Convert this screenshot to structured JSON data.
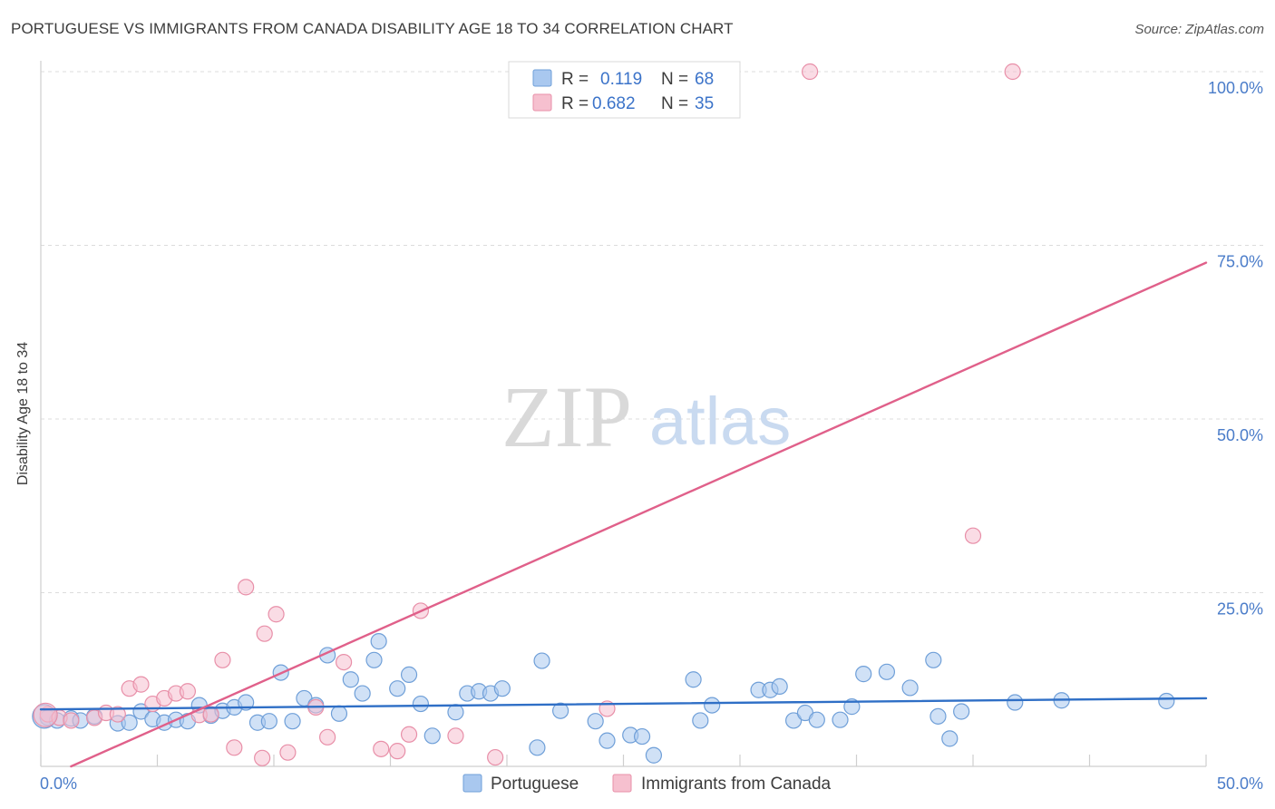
{
  "title": "PORTUGUESE VS IMMIGRANTS FROM CANADA DISABILITY AGE 18 TO 34 CORRELATION CHART",
  "source": "Source: ZipAtlas.com",
  "watermark": {
    "zip": "ZIP",
    "atlas": "atlas"
  },
  "legend_top": {
    "rows": [
      {
        "r_label": "R =",
        "r_value": "0.119",
        "n_label": "N =",
        "n_value": "68"
      },
      {
        "r_label": "R =",
        "r_value": "0.682",
        "n_label": "N =",
        "n_value": "35"
      }
    ]
  },
  "chart_data": {
    "type": "scatter",
    "title": "PORTUGUESE VS IMMIGRANTS FROM CANADA DISABILITY AGE 18 TO 34 CORRELATION CHART",
    "xlabel": "",
    "ylabel": "Disability Age 18 to 34",
    "xlim": [
      0,
      50
    ],
    "ylim": [
      0,
      102
    ],
    "x_tick_labels": [
      "0.0%",
      "50.0%"
    ],
    "y_ticks": [
      25,
      50,
      75,
      100
    ],
    "y_tick_labels": [
      "25.0%",
      "50.0%",
      "75.0%",
      "100.0%"
    ],
    "grid": true,
    "legend_position": "bottom-center",
    "series": [
      {
        "name": "Portuguese",
        "color": "#a9c8ef",
        "edge": "#6f9fd8",
        "line_color": "#2f6fc6",
        "trend": [
          [
            0,
            8.2
          ],
          [
            50,
            9.8
          ]
        ],
        "points": [
          [
            0.3,
            7.0
          ],
          [
            0.7,
            6.6
          ],
          [
            1.3,
            6.9
          ],
          [
            1.7,
            6.6
          ],
          [
            2.3,
            7.2
          ],
          [
            3.3,
            6.2
          ],
          [
            3.8,
            6.3
          ],
          [
            4.3,
            7.9
          ],
          [
            4.8,
            6.8
          ],
          [
            5.3,
            6.3
          ],
          [
            5.8,
            6.7
          ],
          [
            6.3,
            6.5
          ],
          [
            6.8,
            8.8
          ],
          [
            7.3,
            7.3
          ],
          [
            7.8,
            8.0
          ],
          [
            8.3,
            8.5
          ],
          [
            8.8,
            9.2
          ],
          [
            9.3,
            6.3
          ],
          [
            9.8,
            6.5
          ],
          [
            10.3,
            13.5
          ],
          [
            10.8,
            6.5
          ],
          [
            11.3,
            9.8
          ],
          [
            11.8,
            8.8
          ],
          [
            12.3,
            16.0
          ],
          [
            12.8,
            7.6
          ],
          [
            13.3,
            12.5
          ],
          [
            13.8,
            10.5
          ],
          [
            14.3,
            15.3
          ],
          [
            14.5,
            18.0
          ],
          [
            15.3,
            11.2
          ],
          [
            15.8,
            13.2
          ],
          [
            16.3,
            9.0
          ],
          [
            16.8,
            4.4
          ],
          [
            17.8,
            7.8
          ],
          [
            18.3,
            10.5
          ],
          [
            18.8,
            10.8
          ],
          [
            19.3,
            10.5
          ],
          [
            19.8,
            11.2
          ],
          [
            21.5,
            15.2
          ],
          [
            21.3,
            2.7
          ],
          [
            22.3,
            8.0
          ],
          [
            23.8,
            6.5
          ],
          [
            24.3,
            3.7
          ],
          [
            25.3,
            4.5
          ],
          [
            25.8,
            4.3
          ],
          [
            26.3,
            1.6
          ],
          [
            28.0,
            12.5
          ],
          [
            28.3,
            6.6
          ],
          [
            28.8,
            8.8
          ],
          [
            30.8,
            11.0
          ],
          [
            31.3,
            11.0
          ],
          [
            31.7,
            11.5
          ],
          [
            32.3,
            6.6
          ],
          [
            32.8,
            7.7
          ],
          [
            33.3,
            6.7
          ],
          [
            34.3,
            6.7
          ],
          [
            34.8,
            8.6
          ],
          [
            35.3,
            13.3
          ],
          [
            36.3,
            13.6
          ],
          [
            37.3,
            11.3
          ],
          [
            38.3,
            15.3
          ],
          [
            38.5,
            7.2
          ],
          [
            39.0,
            4.0
          ],
          [
            39.5,
            7.9
          ],
          [
            41.8,
            9.2
          ],
          [
            43.8,
            9.5
          ],
          [
            48.3,
            9.4
          ],
          [
            0.15,
            7.2
          ]
        ]
      },
      {
        "name": "Immigrants from Canada",
        "color": "#f6c0cf",
        "edge": "#e88fa8",
        "line_color": "#e0608a",
        "trend": [
          [
            1.3,
            0
          ],
          [
            50,
            72.5
          ]
        ],
        "points": [
          [
            0.3,
            7.5
          ],
          [
            0.8,
            7.0
          ],
          [
            1.3,
            6.6
          ],
          [
            2.3,
            7.0
          ],
          [
            2.8,
            7.7
          ],
          [
            3.3,
            7.5
          ],
          [
            3.8,
            11.2
          ],
          [
            4.3,
            11.8
          ],
          [
            4.8,
            9.0
          ],
          [
            5.3,
            9.8
          ],
          [
            5.8,
            10.5
          ],
          [
            6.3,
            10.8
          ],
          [
            6.8,
            7.4
          ],
          [
            7.3,
            7.5
          ],
          [
            7.8,
            15.3
          ],
          [
            8.3,
            2.7
          ],
          [
            8.8,
            25.8
          ],
          [
            9.5,
            1.2
          ],
          [
            9.6,
            19.1
          ],
          [
            10.1,
            21.9
          ],
          [
            10.6,
            2.0
          ],
          [
            11.8,
            8.5
          ],
          [
            12.3,
            4.2
          ],
          [
            13.0,
            15.0
          ],
          [
            14.6,
            2.5
          ],
          [
            15.3,
            2.2
          ],
          [
            15.8,
            4.6
          ],
          [
            16.3,
            22.4
          ],
          [
            17.8,
            4.4
          ],
          [
            19.5,
            1.3
          ],
          [
            24.3,
            8.3
          ],
          [
            33.0,
            100.0
          ],
          [
            41.7,
            100.0
          ],
          [
            40.0,
            33.2
          ],
          [
            0.2,
            7.4
          ]
        ]
      }
    ]
  }
}
